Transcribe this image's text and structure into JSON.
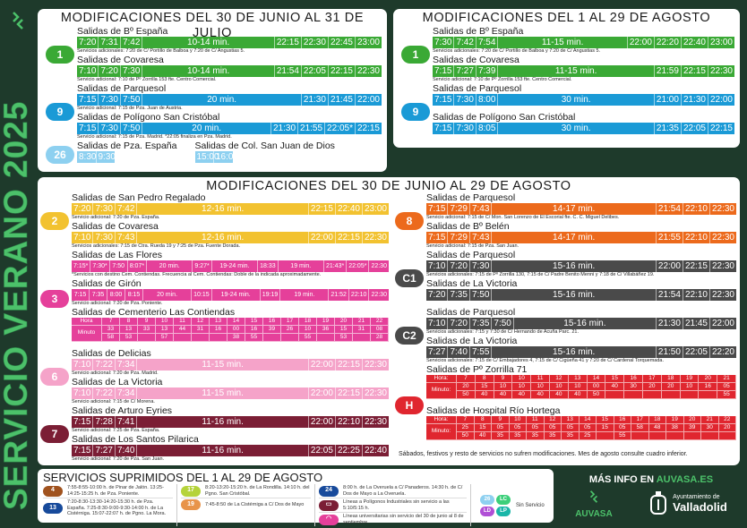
{
  "side_title": "SERVICIO VERANO 2025",
  "colors": {
    "bg": "#1e3a2b",
    "l1": "#3aa935",
    "l9": "#1a9ad6",
    "l26": "#8dd0f0",
    "l2": "#f2c230",
    "l3": "#e5409a",
    "l6": "#f5a3c9",
    "l7": "#7b1e35",
    "l8": "#ec6a1c",
    "c": "#4a4a4a",
    "h": "#e0262f"
  },
  "panel_july": {
    "title": "MODIFICACIONES DEL 30 DE JUNIO AL 31 DE JULIO",
    "groups": [
      {
        "line": "1",
        "color": "l1",
        "routes": [
          {
            "title": "Salidas de Bº España",
            "cells": [
              "7:20",
              "7:31",
              "7:42",
              "10-14 min.",
              "22:15",
              "22:30",
              "22:45",
              "23:00"
            ],
            "note": "Servicios adicionales: 7:20 de C/ Portillo de Balboa y 7:20 de C/ Angustias 5."
          },
          {
            "title": "Salidas de Covaresa",
            "cells": [
              "7:10",
              "7:20",
              "7:30",
              "10-14 min.",
              "21:54",
              "22:05",
              "22:15",
              "22:30"
            ],
            "note": "Servicio adicional: 7:10 de Pº Zorrilla 153 fte. Centro Comercial."
          }
        ]
      },
      {
        "line": "9",
        "color": "l9",
        "routes": [
          {
            "title": "Salidas de Parquesol",
            "cells": [
              "7:15",
              "7:30",
              "7:50",
              "20 min.",
              "21:30",
              "21:45",
              "22:00"
            ],
            "note": "Servicio adicional: 7:15 de Pza. Juan de Austria."
          },
          {
            "title": "Salidas de Polígono San Cristóbal",
            "cells": [
              "7:15",
              "7:30",
              "7:50",
              "20 min.",
              "21:30",
              "21:55",
              "22:05*",
              "22:15"
            ],
            "note": "Servicio adicional: 7:15 de Pza. Madrid. *22:05 finaliza en Pza. Madrid."
          }
        ]
      },
      {
        "line": "26",
        "color": "l26",
        "split": [
          {
            "title": "Salidas de Pza. España",
            "cells": [
              "8:30",
              "9:30"
            ]
          },
          {
            "title": "Salidas de Col. San Juan de Dios",
            "cells": [
              "15:00",
              "16:00"
            ]
          }
        ]
      }
    ]
  },
  "panel_aug": {
    "title": "MODIFICACIONES DEL 1 AL 29 DE AGOSTO",
    "groups": [
      {
        "line": "1",
        "color": "l1",
        "routes": [
          {
            "title": "Salidas de Bº España",
            "cells": [
              "7:30",
              "7:42",
              "7:54",
              "11-15 min.",
              "22:00",
              "22:20",
              "22:40",
              "23:00"
            ],
            "note": "Servicios adicionales: 7:20 de C/ Portillo de Balboa y 7:20 de C/ Angustias 5."
          },
          {
            "title": "Salidas de Covaresa",
            "cells": [
              "7:15",
              "7:27",
              "7:39",
              "11-15 min.",
              "21:59",
              "22:15",
              "22:30"
            ],
            "note": "Servicio adicional: 7:10 de Pº Zorrilla 153 fte. Centro Comercial."
          }
        ]
      },
      {
        "line": "9",
        "color": "l9",
        "routes": [
          {
            "title": "Salidas de Parquesol",
            "cells": [
              "7:15",
              "7:30",
              "8:00",
              "30 min.",
              "21:00",
              "21:30",
              "22:00"
            ]
          },
          {
            "title": "Salidas de Polígono San Cristóbal",
            "cells": [
              "7:15",
              "7:30",
              "8:05",
              "30 min.",
              "21:35",
              "22:05",
              "22:15"
            ]
          }
        ]
      }
    ]
  },
  "panel_main": {
    "title": "MODIFICACIONES DEL 30 DE JUNIO AL 29 DE AGOSTO",
    "left": [
      {
        "line": "2",
        "color": "l2",
        "routes": [
          {
            "title": "Salidas de San Pedro Regalado",
            "cells": [
              "7:20",
              "7:30",
              "7:42",
              "12-16 min.",
              "22:15",
              "22:40",
              "23:00"
            ],
            "note": "Servicio adicional: 7:20 de Pza. España."
          },
          {
            "title": "Salidas de Covaresa",
            "cells": [
              "7:10",
              "7:30",
              "7:43",
              "12-16 min.",
              "22:00",
              "22:15",
              "22:30"
            ],
            "note": "Servicios adicionales: 7:15 de Ctra. Rueda 19 y 7:25 de Pza. Fuente Dorada."
          }
        ]
      },
      {
        "line": "3",
        "color": "l3",
        "small": true,
        "routes": [
          {
            "title": "Salidas de Las Flores",
            "cells": [
              "7:15*",
              "7:30*",
              "7:50",
              "8:07*",
              "20 min.",
              "9:27*",
              "19-24 min.",
              "18:33",
              "19 min.",
              "21:43*",
              "22:05*",
              "22:30"
            ],
            "note": "*Servicios con destino Cem. Contiendas. Frecuencia al Cem. Contiendas: Doble de la indicada aproximadamente."
          },
          {
            "title": "Salidas de Girón",
            "cells": [
              "7:15",
              "7:35",
              "8:00",
              "8:15",
              "20 min.",
              "10:15",
              "19-24 min.",
              "19:19",
              "19 min.",
              "21:52",
              "22:10",
              "22:30"
            ],
            "note": "Servicio adicional: 7:20 de Pza. Poniente."
          },
          {
            "title": "Salidas de Cementerio Las Contiendas",
            "table": {
              "hour_label": "Hora",
              "minute_label": "Minuto",
              "hours": [
                "7",
                "8",
                "9",
                "10",
                "11",
                "12",
                "13",
                "14",
                "15",
                "16",
                "17",
                "18",
                "19",
                "20",
                "21",
                "22"
              ],
              "minutes": [
                [
                  "33",
                  "58"
                ],
                [
                  "13",
                  "53"
                ],
                [
                  "33"
                ],
                [
                  "13",
                  "57"
                ],
                [
                  "44"
                ],
                [
                  "31"
                ],
                [
                  "16"
                ],
                [
                  "00",
                  "38"
                ],
                [
                  "16",
                  "55"
                ],
                [
                  "39"
                ],
                [
                  "26"
                ],
                [
                  "10",
                  "55"
                ],
                [
                  "36"
                ],
                [
                  "15",
                  "53"
                ],
                [
                  "31"
                ],
                [
                  "08",
                  "28"
                ]
              ]
            }
          }
        ]
      },
      {
        "line": "6",
        "color": "l6",
        "routes": [
          {
            "title": "Salidas de Delicias",
            "cells": [
              "7:10",
              "7:22",
              "7:34",
              "11-15 min.",
              "22:00",
              "22:15",
              "22:30"
            ],
            "note": "Servicio adicional: 7:20 de Pza. Madrid."
          },
          {
            "title": "Salidas de La Victoria",
            "cells": [
              "7:10",
              "7:22",
              "7:34",
              "11-15 min.",
              "22:00",
              "22:15",
              "22:30"
            ],
            "note": "Servicio adicional: 7:15 de C/ Morena."
          }
        ]
      },
      {
        "line": "7",
        "color": "l7",
        "routes": [
          {
            "title": "Salidas de Arturo Eyries",
            "cells": [
              "7:15",
              "7:28",
              "7:41",
              "11-16 min.",
              "22:00",
              "22:10",
              "22:30"
            ],
            "note": "Servicio adicional: 7:25 de Pza. España."
          },
          {
            "title": "Salidas de Los Santos Pilarica",
            "cells": [
              "7:15",
              "7:27",
              "7:40",
              "11-16 min.",
              "22:05",
              "22:25",
              "22:40"
            ],
            "note": "Servicio adicional: 7:20 de Pza. San Juan."
          }
        ]
      }
    ],
    "right": [
      {
        "line": "8",
        "color": "l8",
        "routes": [
          {
            "title": "Salidas de Parquesol",
            "cells": [
              "7:15",
              "7:29",
              "7:43",
              "14-17 min.",
              "21:54",
              "22:10",
              "22:30"
            ],
            "note": "Servicio adicional: 7:15 de C/ Mon. San Lorenzo de El Escorial fte. C. C. Miguel Delibes."
          },
          {
            "title": "Salidas de Bº Belén",
            "cells": [
              "7:15",
              "7:29",
              "7:43",
              "14-17 min.",
              "21:55",
              "22:10",
              "22:30"
            ],
            "note": "Servicio adicional: 7:15 de Pza. San Juan."
          }
        ]
      },
      {
        "line": "C1",
        "color": "c",
        "routes": [
          {
            "title": "Salidas de Parquesol",
            "cells": [
              "7:10",
              "7:20",
              "7:30",
              "15-16 min.",
              "22:00",
              "22:15",
              "22:30"
            ],
            "note": "Servicios adicionales: 7:15 de Pº Zorrilla 130, 7:15 de C/ Padre Benito Menni y 7:18 de C/ Villabáñez 19."
          },
          {
            "title": "Salidas de La Victoria",
            "cells": [
              "7:20",
              "7:35",
              "7:50",
              "15-16 min.",
              "21:54",
              "22:10",
              "22:30"
            ]
          }
        ]
      },
      {
        "line": "C2",
        "color": "c",
        "routes": [
          {
            "title": "Salidas de Parquesol",
            "cells": [
              "7:10",
              "7:20",
              "7:35",
              "7:50",
              "15-16 min.",
              "21:30",
              "21:45",
              "22:00"
            ],
            "note": "Servicios adicionales: 7:15 y 7:30 de C/ Hernando de Acuña Parc. 21."
          },
          {
            "title": "Salidas de La Victoria",
            "cells": [
              "7:27",
              "7:40",
              "7:55",
              "15-16 min.",
              "21:50",
              "22:05",
              "22:20"
            ],
            "note": "Servicios adicionales: 7:15 de C/ Embajadores 4, 7:15 de C/ Cigüeña 41 y 7:20 de C/ Cardenal Torquemada."
          }
        ]
      },
      {
        "line": "H",
        "color": "h",
        "routes": [
          {
            "title": "Salidas de Pº Zorrilla 71",
            "table": {
              "hour_label": "Hora:",
              "minute_label": "Minuto:",
              "hours": [
                "7",
                "8",
                "9",
                "10",
                "11",
                "12",
                "13",
                "14",
                "15",
                "16",
                "17",
                "18",
                "19",
                "20",
                "21"
              ],
              "minutes": [
                [
                  "20",
                  "50"
                ],
                [
                  "15",
                  "40"
                ],
                [
                  "10",
                  "40"
                ],
                [
                  "10",
                  "40"
                ],
                [
                  "10",
                  "40"
                ],
                [
                  "10",
                  "40"
                ],
                [
                  "10",
                  "40"
                ],
                [
                  "00",
                  "50"
                ],
                [
                  "40"
                ],
                [
                  "30"
                ],
                [
                  "20"
                ],
                [
                  "20"
                ],
                [
                  "10"
                ],
                [
                  "16"
                ],
                [
                  "05",
                  "55"
                ]
              ]
            }
          },
          {
            "title": "Salidas de Hospital Río Hortega",
            "table": {
              "hour_label": "Hora:",
              "minute_label": "Minuto:",
              "hours": [
                "7",
                "8",
                "9",
                "10",
                "11",
                "12",
                "13",
                "14",
                "15",
                "16",
                "17",
                "18",
                "19",
                "20",
                "21",
                "22"
              ],
              "minutes": [
                [
                  "25",
                  "50"
                ],
                [
                  "15",
                  "40"
                ],
                [
                  "05",
                  "35"
                ],
                [
                  "05",
                  "35"
                ],
                [
                  "05",
                  "35"
                ],
                [
                  "05",
                  "35"
                ],
                [
                  "05",
                  "35"
                ],
                [
                  "05",
                  "25"
                ],
                [
                  "15"
                ],
                [
                  "05",
                  "55"
                ],
                [
                  "58"
                ],
                [
                  "48"
                ],
                [
                  "38"
                ],
                [
                  "39"
                ],
                [
                  "30"
                ],
                [
                  "20"
                ]
              ]
            }
          }
        ]
      }
    ],
    "footnote": "Sábados, festivos y resto de servicios no sufren modificaciones. Mes de agosto consulte cuadro inferior."
  },
  "suppressed": {
    "title": "SERVICIOS SUPRIMIDOS DEL 1 AL 29 DE AGOSTO",
    "items": [
      {
        "line": "4",
        "color": "#a0521d",
        "text": "7:55-8:55-10:00 h. de Pinar de Jalón. 13:25-14:25-15:25 h. de Pza. Poniente."
      },
      {
        "line": "13",
        "color": "#174a9b",
        "text": "7:20-8:30-13:30-14:20-15:30 h. de Pza. España. 7:25-8:30-9:00-9:30-14:00 h. de La Cistérniga. 15:07-22:07 h. de Pgno. La Mora."
      },
      {
        "line": "17",
        "color": "#b5d33a",
        "text": "8:20-13:20-15:20 h. de La Rondilla. 14:10 h. del Pgno. San Cristóbal."
      },
      {
        "line": "19",
        "color": "#e8944a",
        "text": "7:45-8:50 de La Cistérniga a C/ Dos de Mayo"
      },
      {
        "line": "24",
        "color": "#174a9b",
        "text": "8:00 h. de La Overuela a C/ Panaderos. 14:30 h. de C/ Dos de Mayo a La Overuela."
      },
      {
        "line": "bus-icon",
        "color": "#7b1e35",
        "text": "Líneas a Polígonos Industriales sin servicio a las 5:10/5:15 h."
      },
      {
        "line": "graduation-icon",
        "color": "#e5409a",
        "text": "Líneas universitarias sin servicio del 30 de junio al 8 de septiembre."
      }
    ],
    "no_service": {
      "lines": [
        {
          "l": "26",
          "c": "#8dd0f0"
        },
        {
          "l": "LC",
          "c": "#3ccf7a"
        },
        {
          "l": "LD",
          "c": "#b04fd6"
        },
        {
          "l": "LP",
          "c": "#1ab6a8"
        }
      ],
      "label": "Sin Servicio"
    }
  },
  "info": {
    "more_prefix": "MÁS INFO EN ",
    "more_site": "AUVASA.ES",
    "brand": "AUVASA",
    "city_small": "Ayuntamiento de",
    "city": "Valladolid"
  }
}
